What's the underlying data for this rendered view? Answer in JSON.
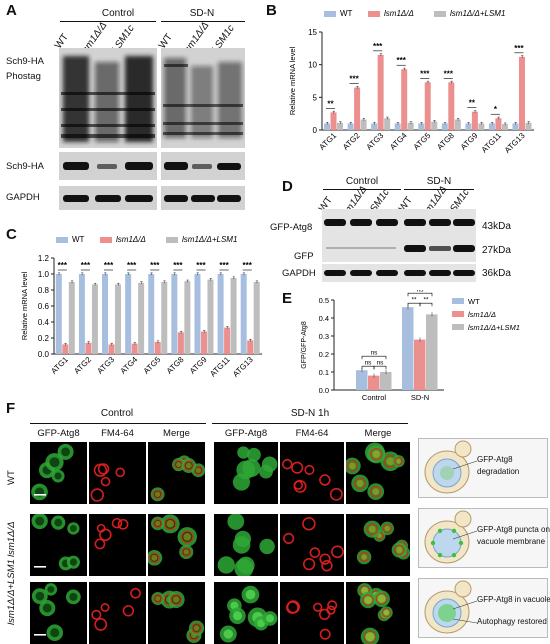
{
  "panels": {
    "A": {
      "letter": "A",
      "groups": [
        "Control",
        "SD-N"
      ],
      "lanes_control": [
        "WT",
        "lsm1Δ/Δ",
        "LSM1c"
      ],
      "lanes_sdn": [
        "WT",
        "lsm1Δ/Δ",
        "LSM1c"
      ],
      "rows": [
        "Sch9-HA\nPhostag",
        "Sch9-HA",
        "GAPDH"
      ]
    },
    "B": {
      "letter": "B",
      "legend": [
        "WT",
        "lsm1Δ/Δ",
        "lsm1Δ/Δ+LSM1"
      ]
    },
    "C": {
      "letter": "C",
      "legend": [
        "WT",
        "lsm1Δ/Δ",
        "lsm1Δ/Δ+LSM1"
      ]
    },
    "D": {
      "letter": "D",
      "groups": [
        "Control",
        "SD-N"
      ],
      "lanes": [
        "WT",
        "lsm1Δ/Δ",
        "LSM1c",
        "WT",
        "lsm1Δ/Δ",
        "LSM1c"
      ],
      "rows_left": [
        "GFP-Atg8",
        "GFP",
        "GAPDH"
      ],
      "sizes": [
        "43kDa",
        "27kDa",
        "36kDa"
      ]
    },
    "E": {
      "letter": "E",
      "legend": [
        "WT",
        "lsm1Δ/Δ",
        "lsm1Δ/Δ+LSM1"
      ],
      "ns_label": "ns",
      "star_label": "**"
    },
    "F": {
      "letter": "F",
      "groups": [
        "Control",
        "SD-N 1h"
      ],
      "columns": [
        "GFP-Atg8",
        "FM4-64",
        "Merge",
        "GFP-Atg8",
        "FM4-64",
        "Merge"
      ],
      "rows": [
        "WT",
        "lsm1Δ/Δ",
        "lsm1Δ/Δ+LSM1"
      ],
      "cartoon_labels": [
        [
          "GFP-Atg8",
          "degradation"
        ],
        [
          "GFP-Atg8 puncta on",
          "vacuole membrane"
        ],
        [
          "GFP-Atg8 in vacuole",
          "Autophagy restored"
        ]
      ]
    }
  },
  "colors": {
    "wt": "#a7bedf",
    "mutant": "#ec8f8f",
    "complemented": "#bdbdbd",
    "sig": "#000000"
  },
  "chart_data": [
    {
      "id": "B",
      "type": "bar",
      "title": "",
      "xlabel": "",
      "ylabel": "Relative mRNA level",
      "ylim": [
        0,
        15
      ],
      "yticks": [
        0,
        5,
        10,
        15
      ],
      "categories": [
        "ATG1",
        "ATG2",
        "ATG3",
        "ATG4",
        "ATG5",
        "ATG8",
        "ATG9",
        "ATG11",
        "ATG13"
      ],
      "series": [
        {
          "name": "WT",
          "values": [
            1,
            1,
            1,
            1,
            1,
            1,
            1,
            1,
            1
          ]
        },
        {
          "name": "lsm1Δ/Δ",
          "values": [
            2.7,
            6.5,
            11.5,
            9.3,
            7.3,
            7.3,
            2.8,
            1.8,
            11.2
          ]
        },
        {
          "name": "lsm1Δ/Δ+LSM1",
          "values": [
            1.1,
            1.6,
            1.8,
            1.1,
            1.3,
            1.6,
            1.0,
            0.9,
            1.1
          ]
        }
      ],
      "significance": [
        "**",
        "***",
        "***",
        "***",
        "***",
        "***",
        "**",
        "*",
        "***"
      ],
      "legend": "top"
    },
    {
      "id": "C",
      "type": "bar",
      "title": "",
      "xlabel": "",
      "ylabel": "Relative mRNA level",
      "ylim": [
        0,
        1.2
      ],
      "yticks": [
        0.0,
        0.2,
        0.4,
        0.6,
        0.8,
        1.0,
        1.2
      ],
      "categories": [
        "ATG1",
        "ATG2",
        "ATG3",
        "ATG4",
        "ATG5",
        "ATG8",
        "ATG9",
        "ATG11",
        "ATG13"
      ],
      "series": [
        {
          "name": "WT",
          "values": [
            1,
            1,
            1,
            1,
            1,
            1,
            1,
            1,
            1
          ]
        },
        {
          "name": "lsm1Δ/Δ",
          "values": [
            0.12,
            0.14,
            0.12,
            0.13,
            0.15,
            0.27,
            0.28,
            0.33,
            0.17
          ]
        },
        {
          "name": "lsm1Δ/Δ+LSM1",
          "values": [
            0.9,
            0.87,
            0.87,
            0.89,
            0.9,
            0.91,
            0.93,
            0.95,
            0.9
          ]
        }
      ],
      "significance": [
        "***",
        "***",
        "***",
        "***",
        "***",
        "***",
        "***",
        "***",
        "***"
      ],
      "legend": "top"
    },
    {
      "id": "E",
      "type": "bar",
      "title": "",
      "xlabel": "",
      "ylabel": "GFP/GFP-Atg8",
      "ylim": [
        0,
        0.5
      ],
      "yticks": [
        0.0,
        0.1,
        0.2,
        0.3,
        0.4,
        0.5
      ],
      "categories": [
        "Control",
        "SD-N"
      ],
      "series": [
        {
          "name": "WT",
          "values": [
            0.11,
            0.46
          ]
        },
        {
          "name": "lsm1Δ/Δ",
          "values": [
            0.08,
            0.28
          ]
        },
        {
          "name": "lsm1Δ/Δ+LSM1",
          "values": [
            0.1,
            0.42
          ]
        }
      ],
      "legend": "right"
    }
  ]
}
